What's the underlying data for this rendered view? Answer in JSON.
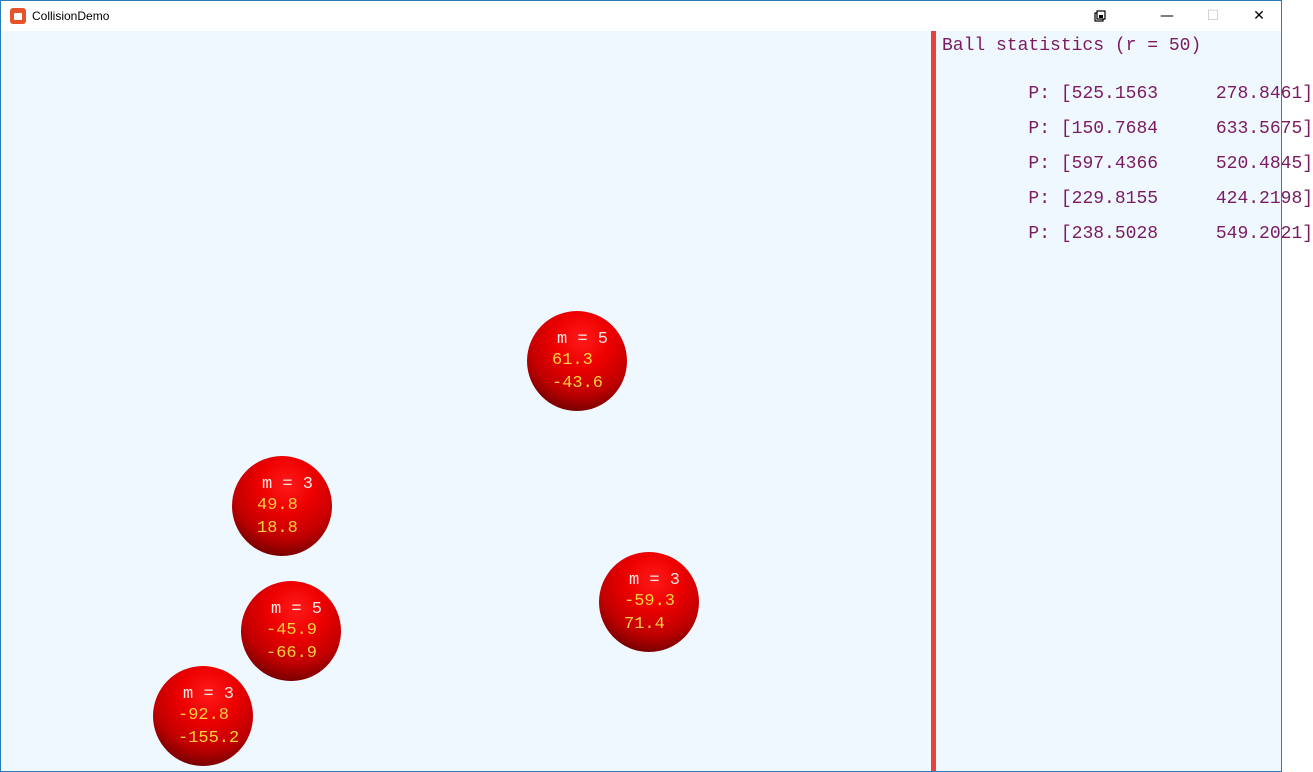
{
  "window": {
    "title": "CollisionDemo",
    "controls": {
      "restore_icon": "restore-icon",
      "minimize_glyph": "—",
      "maximize_glyph": "☐",
      "close_glyph": "✕"
    }
  },
  "colors": {
    "background": "#f0f8ff",
    "divider": "#e8413a",
    "stats_text": "#7a1a63",
    "ball": "#e00000",
    "velocity_text": "#ffd23a"
  },
  "stats": {
    "title": "Ball statistics (r = 50)",
    "rows": [
      {
        "label": "P:",
        "x": "[525.1563",
        "y": "278.8461]"
      },
      {
        "label": "P:",
        "x": "[150.7684",
        "y": "633.5675]"
      },
      {
        "label": "P:",
        "x": "[597.4366",
        "y": "520.4845]"
      },
      {
        "label": "P:",
        "x": "[229.8155",
        "y": "424.2198]"
      },
      {
        "label": "P:",
        "x": "[238.5028",
        "y": "549.2021]"
      }
    ]
  },
  "balls": [
    {
      "mass": "m = 5",
      "vx": "61.3",
      "vy": "-43.6"
    },
    {
      "mass": "m = 3",
      "vx": "49.8",
      "vy": "18.8"
    },
    {
      "mass": "m = 3",
      "vx": "-59.3",
      "vy": "71.4"
    },
    {
      "mass": "m = 5",
      "vx": "-45.9",
      "vy": "-66.9"
    },
    {
      "mass": "m = 3",
      "vx": "-92.8",
      "vy": "-155.2"
    }
  ]
}
